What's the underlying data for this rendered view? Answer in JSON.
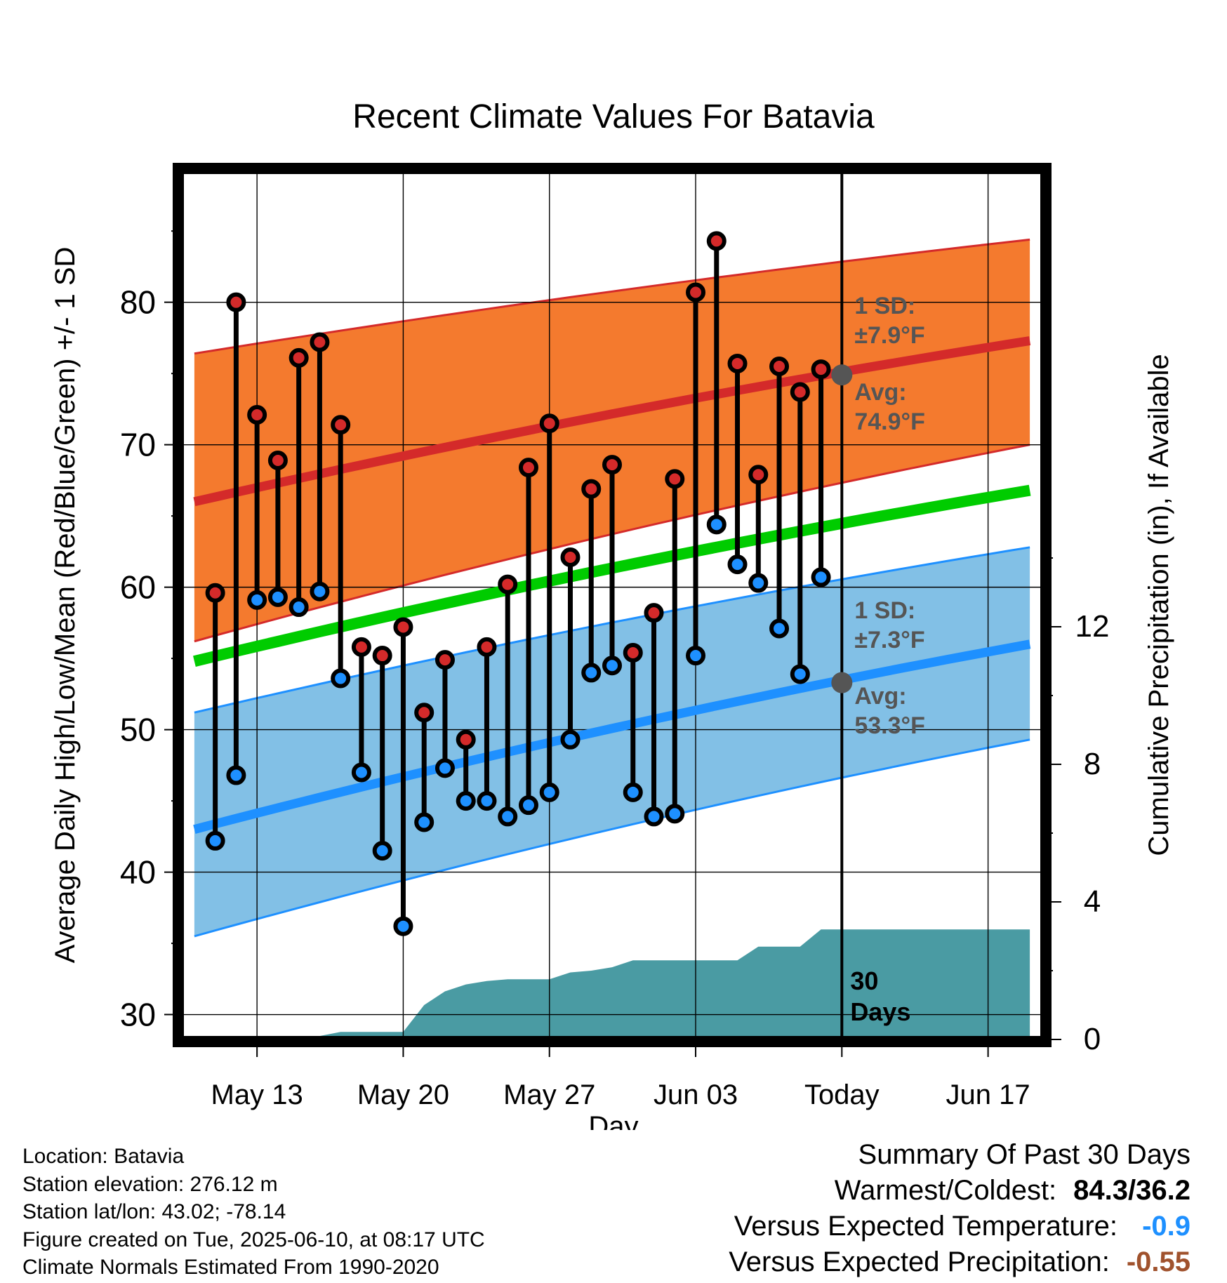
{
  "chart_data": {
    "type": "line",
    "title": "Recent Climate Values For Batavia",
    "xlabel": "Day",
    "ylabel": "Average Daily High/Low/Mean (Red/Blue/Green) +/- 1 SD",
    "y2label": "Cumulative Precipitation (in), If Available",
    "x_tick_labels": [
      "May 13",
      "May 20",
      "May 27",
      "Jun 03",
      "Today",
      "Jun 17"
    ],
    "x_tick_dates": [
      "2025-05-13",
      "2025-05-20",
      "2025-05-27",
      "2025-06-03",
      "2025-06-10",
      "2025-06-17"
    ],
    "xlim": [
      "2025-05-09T12:00",
      "2025-06-19T12:00"
    ],
    "ylim": [
      28.5,
      89
    ],
    "y_ticks": [
      30,
      40,
      50,
      60,
      70,
      80
    ],
    "y2lim": [
      0,
      24
    ],
    "y2_ticks": [
      0,
      4,
      8,
      12
    ],
    "grid": true,
    "dates": [
      "2025-05-11",
      "2025-05-12",
      "2025-05-13",
      "2025-05-14",
      "2025-05-15",
      "2025-05-16",
      "2025-05-17",
      "2025-05-18",
      "2025-05-19",
      "2025-05-20",
      "2025-05-21",
      "2025-05-22",
      "2025-05-23",
      "2025-05-24",
      "2025-05-25",
      "2025-05-26",
      "2025-05-27",
      "2025-05-28",
      "2025-05-29",
      "2025-05-30",
      "2025-05-31",
      "2025-06-01",
      "2025-06-02",
      "2025-06-03",
      "2025-06-04",
      "2025-06-05",
      "2025-06-06",
      "2025-06-07",
      "2025-06-08",
      "2025-06-09"
    ],
    "series": [
      {
        "name": "High",
        "color": "#d42a2a",
        "values": [
          59.6,
          80.0,
          72.1,
          68.9,
          76.1,
          77.2,
          71.4,
          55.8,
          55.2,
          57.2,
          51.2,
          54.9,
          49.3,
          55.8,
          60.2,
          68.4,
          71.5,
          62.1,
          66.9,
          68.6,
          55.4,
          58.2,
          67.6,
          80.7,
          84.3,
          75.7,
          67.9,
          75.5,
          73.7,
          75.3
        ]
      },
      {
        "name": "Low",
        "color": "#1e90ff",
        "values": [
          42.2,
          46.8,
          59.1,
          59.3,
          58.6,
          59.7,
          53.6,
          47.0,
          41.5,
          36.2,
          43.5,
          47.3,
          45.0,
          45.0,
          43.9,
          44.7,
          45.6,
          49.3,
          54.0,
          54.5,
          45.6,
          43.9,
          44.1,
          55.2,
          64.4,
          61.6,
          60.3,
          57.1,
          53.9,
          60.7
        ]
      }
    ],
    "normals": {
      "dates": [
        "2025-05-10",
        "2025-06-19"
      ],
      "high_mean": [
        66.0,
        77.3
      ],
      "high_upper": [
        76.4,
        84.4
      ],
      "high_lower": [
        56.2,
        70.0
      ],
      "mean": [
        54.8,
        66.8
      ],
      "low_mean": [
        43.0,
        56.0
      ],
      "low_upper": [
        51.2,
        62.8
      ],
      "low_lower": [
        35.5,
        49.3
      ],
      "colors": {
        "high_band": "#f47a2e",
        "high_line": "#d42a2a",
        "mean_line": "#00cc00",
        "low_band": "#82c0e6",
        "low_line": "#1e90ff"
      }
    },
    "precipitation": {
      "color": "#4a9ba3",
      "dates": [
        "2025-05-10",
        "2025-05-15",
        "2025-05-16",
        "2025-05-17",
        "2025-05-18",
        "2025-05-19",
        "2025-05-20",
        "2025-05-21",
        "2025-05-22",
        "2025-05-23",
        "2025-05-24",
        "2025-05-25",
        "2025-05-26",
        "2025-05-27",
        "2025-05-28",
        "2025-05-29",
        "2025-05-30",
        "2025-05-31",
        "2025-06-01",
        "2025-06-02",
        "2025-06-03",
        "2025-06-04",
        "2025-06-05",
        "2025-06-06",
        "2025-06-07",
        "2025-06-08",
        "2025-06-09",
        "2025-06-19"
      ],
      "values": [
        0,
        0,
        0.1,
        0.22,
        0.22,
        0.22,
        0.22,
        1.0,
        1.4,
        1.6,
        1.7,
        1.75,
        1.75,
        1.75,
        1.95,
        2.0,
        2.1,
        2.3,
        2.3,
        2.3,
        2.3,
        2.3,
        2.3,
        2.7,
        2.7,
        2.7,
        3.2,
        3.2
      ]
    },
    "today_marker": {
      "date": "2025-06-10",
      "label": "30\nDays",
      "high_avg": 74.9,
      "low_avg": 53.3,
      "high_sd_label": "1 SD:\n±7.9°F",
      "high_avg_label": "Avg:\n74.9°F",
      "low_sd_label": "1 SD:\n±7.3°F",
      "low_avg_label": "Avg:\n53.3°F"
    }
  },
  "footer": {
    "location": "Location: Batavia",
    "elevation": "Station elevation: 276.12 m",
    "latlon": "Station lat/lon: 43.02; -78.14",
    "created": "Figure created on Tue, 2025-06-10, at 08:17 UTC",
    "normals": "Climate Normals Estimated From 1990-2020"
  },
  "summary": {
    "title": "Summary Of Past 30 Days",
    "warmest_label": "Warmest/Coldest:",
    "warmest_value": "84.3/36.2",
    "temp_label": "Versus Expected Temperature:",
    "temp_value": "-0.9",
    "temp_color": "#1e90ff",
    "precip_label": "Versus Expected Precipitation:",
    "precip_value": "-0.55",
    "precip_color": "#a0522d"
  }
}
